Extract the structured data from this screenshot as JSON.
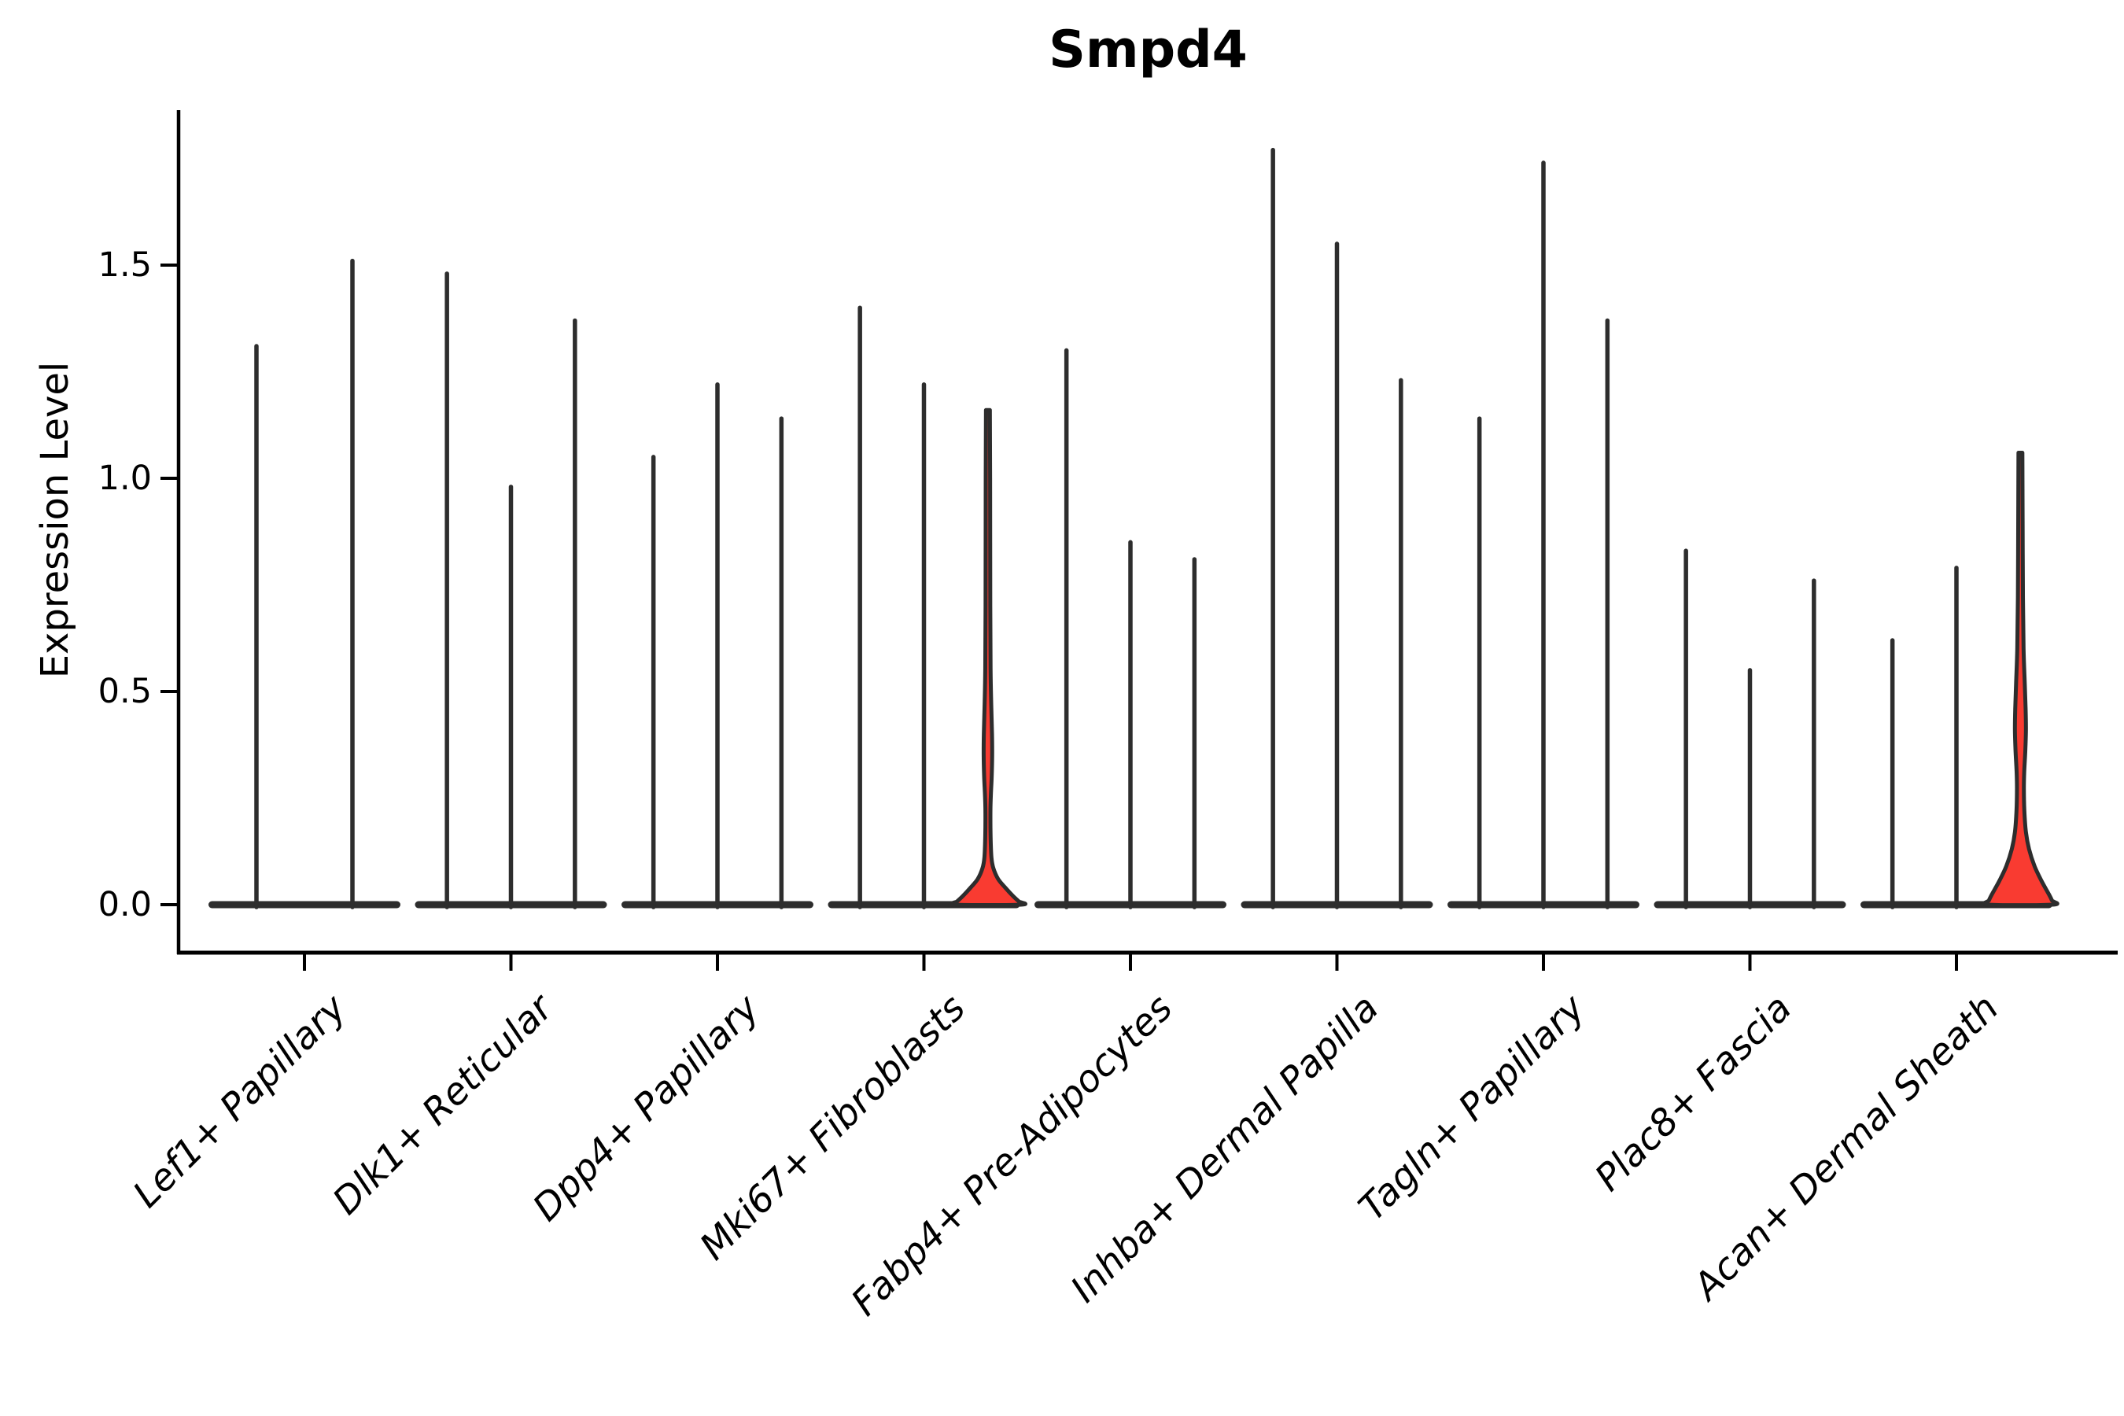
{
  "chart_data": {
    "type": "violin",
    "title": "Smpd4",
    "ylabel": "Expression Level",
    "xlabel": "",
    "grid": false,
    "legend": null,
    "background": "#ffffff",
    "outline_color": "#2d2d2d",
    "fill_color": "#f93b31",
    "axis_color": "#000000",
    "ylim": [
      -0.11,
      1.86
    ],
    "yticks": [
      "1.5",
      "1.0",
      "0.5",
      "0.0"
    ],
    "ytick_values": [
      1.5,
      1.0,
      0.5,
      0.0
    ],
    "categories": [
      {
        "label": "Lef1+ Papillary",
        "violins": [
          {
            "max": 1.31
          },
          {
            "max": 1.51
          }
        ]
      },
      {
        "label": "Dlk1+ Reticular",
        "violins": [
          {
            "max": 1.48
          },
          {
            "max": 0.98
          },
          {
            "max": 1.37
          }
        ]
      },
      {
        "label": "Dpp4+ Papillary",
        "violins": [
          {
            "max": 1.05
          },
          {
            "max": 1.22
          },
          {
            "max": 1.14
          }
        ]
      },
      {
        "label": "Mki67+ Fibroblasts",
        "violins": [
          {
            "max": 1.4
          },
          {
            "max": 1.22
          },
          {
            "max": 1.16,
            "filled": true,
            "profile": [
              [
                1.16,
                2.5
              ],
              [
                1.0,
                2.8
              ],
              [
                0.7,
                3.0
              ],
              [
                0.55,
                3.4
              ],
              [
                0.47,
                4.2
              ],
              [
                0.4,
                5.2
              ],
              [
                0.35,
                5.4
              ],
              [
                0.3,
                4.8
              ],
              [
                0.26,
                3.8
              ],
              [
                0.22,
                3.2
              ],
              [
                0.16,
                3.4
              ],
              [
                0.11,
                4.5
              ],
              [
                0.085,
                7
              ],
              [
                0.06,
                13
              ],
              [
                0.04,
                22
              ],
              [
                0.02,
                32
              ],
              [
                0.008,
                39
              ],
              [
                0.0,
                42
              ]
            ]
          }
        ]
      },
      {
        "label": "Fabp4+ Pre-Adipocytes",
        "violins": [
          {
            "max": 1.3
          },
          {
            "max": 0.85
          },
          {
            "max": 0.81
          }
        ]
      },
      {
        "label": "Inhba+ Dermal Papilla",
        "violins": [
          {
            "max": 1.77
          },
          {
            "max": 1.55
          },
          {
            "max": 1.23
          }
        ]
      },
      {
        "label": "Tagln+ Papillary",
        "violins": [
          {
            "max": 1.14
          },
          {
            "max": 1.74
          },
          {
            "max": 1.37
          }
        ]
      },
      {
        "label": "Plac8+ Fascia",
        "violins": [
          {
            "max": 0.83
          },
          {
            "max": 0.55
          },
          {
            "max": 0.76
          }
        ]
      },
      {
        "label": "Acan+ Dermal Sheath",
        "violins": [
          {
            "max": 0.62
          },
          {
            "max": 0.79
          },
          {
            "max": 1.06,
            "filled": true,
            "profile": [
              [
                1.06,
                2.5
              ],
              [
                0.9,
                2.8
              ],
              [
                0.72,
                3.2
              ],
              [
                0.6,
                4.0
              ],
              [
                0.52,
                5.5
              ],
              [
                0.46,
                6.6
              ],
              [
                0.41,
                7.0
              ],
              [
                0.36,
                6.2
              ],
              [
                0.31,
                4.8
              ],
              [
                0.27,
                4.4
              ],
              [
                0.22,
                5.0
              ],
              [
                0.17,
                7
              ],
              [
                0.13,
                11
              ],
              [
                0.09,
                18
              ],
              [
                0.055,
                27
              ],
              [
                0.025,
                36
              ],
              [
                0.01,
                40
              ],
              [
                0.0,
                41
              ]
            ]
          }
        ]
      }
    ]
  }
}
